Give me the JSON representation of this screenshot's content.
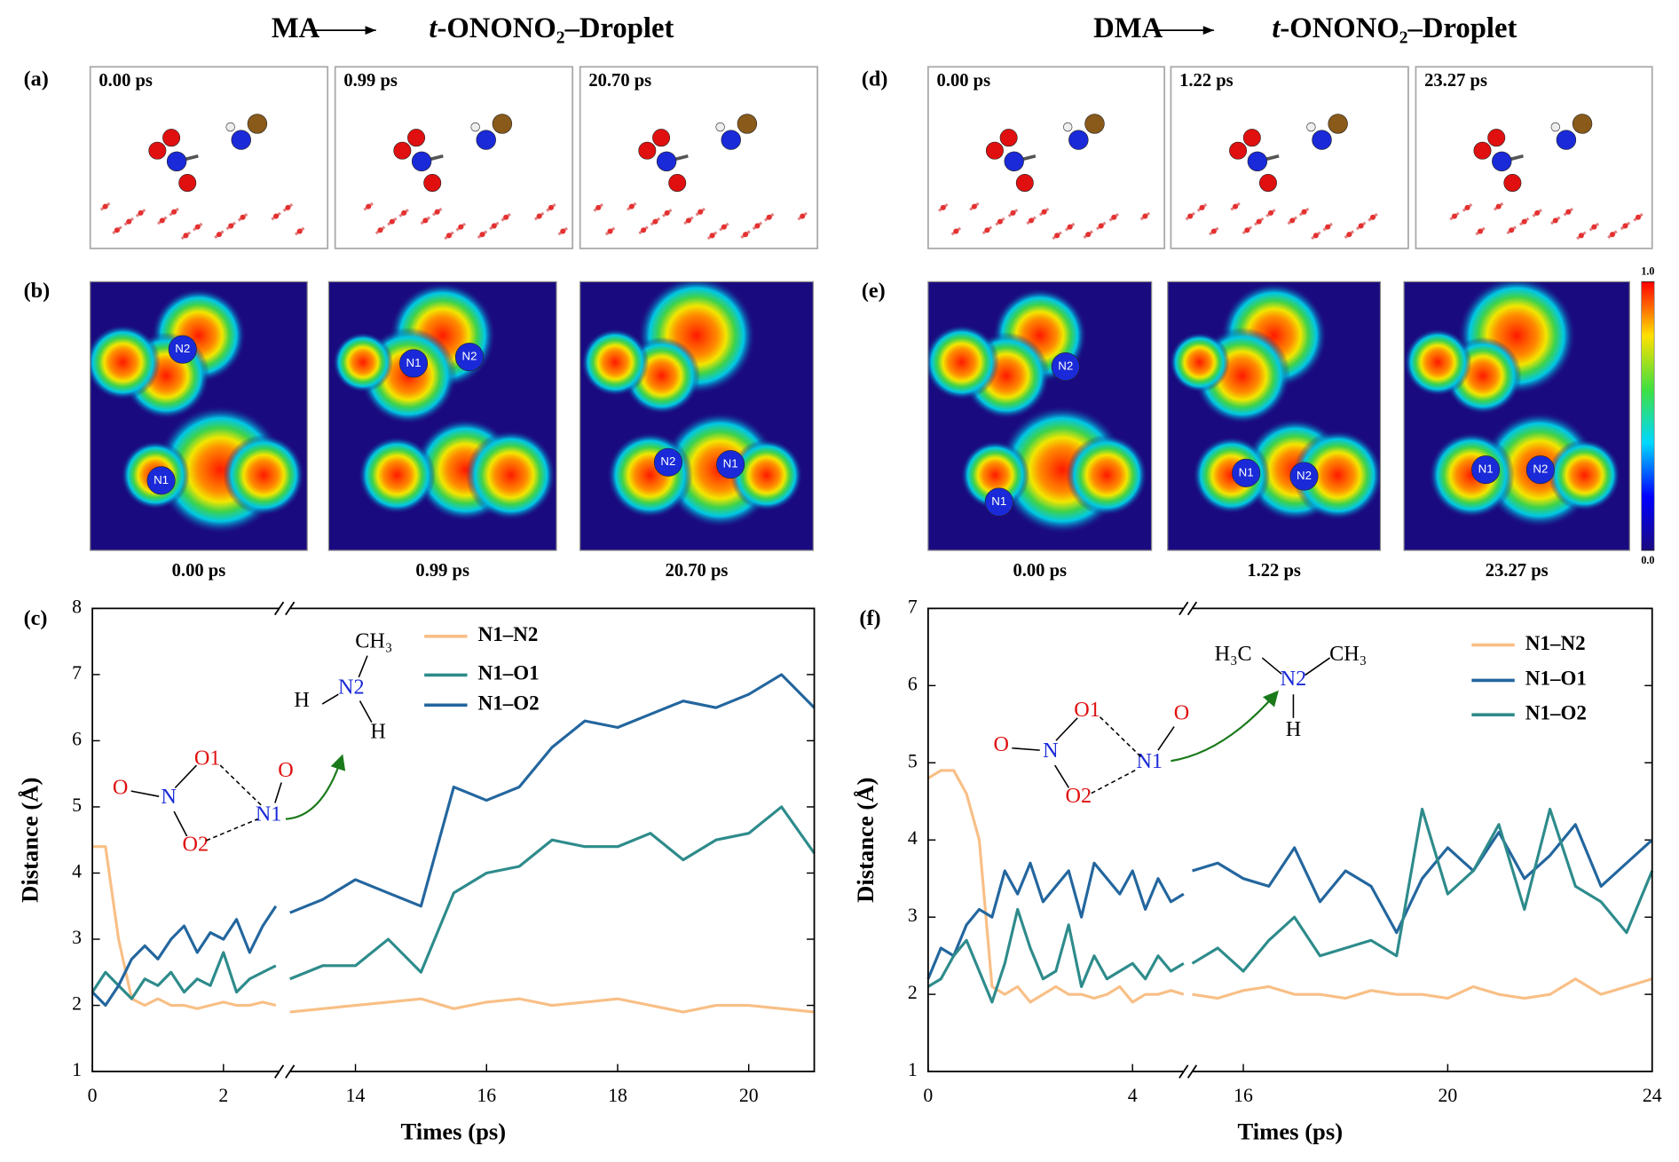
{
  "figure": {
    "titles": [
      {
        "reactant": "MA",
        "product_italic": "t",
        "product": "-ONONO₂–Droplet"
      },
      {
        "reactant": "DMA",
        "product_italic": "t",
        "product": "-ONONO₂–Droplet"
      }
    ],
    "snapshots": [
      {
        "label": "(a)",
        "times": [
          "0.00 ps",
          "0.99 ps",
          "20.70 ps"
        ]
      },
      {
        "label": "(d)",
        "times": [
          "0.00 ps",
          "1.22 ps",
          "23.27 ps"
        ]
      }
    ],
    "elf": [
      {
        "label": "(b)",
        "times": [
          "0.00 ps",
          "0.99 ps",
          "20.70 ps"
        ],
        "atoms": [
          [
            "N2",
            "N1"
          ],
          [
            "N1",
            "N2"
          ],
          [
            "N2",
            "N1"
          ]
        ]
      },
      {
        "label": "(e)",
        "times": [
          "0.00 ps",
          "1.22 ps",
          "23.27 ps"
        ],
        "atoms": [
          [
            "N2",
            "N1"
          ],
          [
            "N1",
            "N2"
          ],
          [
            "N1",
            "N2"
          ]
        ]
      }
    ],
    "colorbar": [
      {
        "value": 1,
        "label": "1.0"
      },
      {
        "value": 0,
        "label": "0.0"
      }
    ],
    "insets": [
      [
        "CH₃",
        "N2",
        "H",
        "H",
        "O1",
        "O",
        "N",
        "O2",
        "N1",
        "O"
      ],
      [
        "H₃C",
        "N2",
        "CH₃",
        "H",
        "O1",
        "O",
        "N",
        "O2",
        "N1",
        "O"
      ]
    ]
  },
  "chart_data": [
    {
      "type": "line",
      "label": "(c)",
      "xlabel": "Times (ps)",
      "ylabel": "Distance (Å)",
      "xlim": [
        0,
        21
      ],
      "xbreak": [
        2.85,
        13
      ],
      "xticks": [
        0,
        2,
        14,
        16,
        18,
        20
      ],
      "ylim": [
        1,
        8
      ],
      "yticks": [
        1,
        2,
        3,
        4,
        5,
        6,
        7,
        8
      ],
      "x": [
        0,
        0.2,
        0.4,
        0.6,
        0.8,
        1.0,
        1.2,
        1.4,
        1.6,
        1.8,
        2.0,
        2.2,
        2.4,
        2.6,
        2.8,
        13,
        13.5,
        14,
        14.5,
        15,
        15.5,
        16,
        16.5,
        17,
        17.5,
        18,
        18.5,
        19,
        19.5,
        20,
        20.5,
        21
      ],
      "series": [
        {
          "name": "N1–N2",
          "color": "#f8bf86",
          "values": [
            4.4,
            4.4,
            3.0,
            2.1,
            2.0,
            2.1,
            2.0,
            2.0,
            1.95,
            2.0,
            2.05,
            2.0,
            2.0,
            2.05,
            2.0,
            1.9,
            1.95,
            2.0,
            2.05,
            2.1,
            1.95,
            2.05,
            2.1,
            2.0,
            2.05,
            2.1,
            2.0,
            1.9,
            2.0,
            2.0,
            1.95,
            1.9
          ]
        },
        {
          "name": "N1–O1",
          "color": "#2e8b8b",
          "values": [
            2.2,
            2.5,
            2.3,
            2.1,
            2.4,
            2.3,
            2.5,
            2.2,
            2.4,
            2.3,
            2.8,
            2.2,
            2.4,
            2.5,
            2.6,
            2.4,
            2.6,
            2.6,
            3.0,
            2.5,
            3.7,
            4.0,
            4.1,
            4.5,
            4.4,
            4.4,
            4.6,
            4.2,
            4.5,
            4.6,
            5.0,
            4.3
          ]
        },
        {
          "name": "N1–O2",
          "color": "#23669e",
          "values": [
            2.2,
            2.0,
            2.3,
            2.7,
            2.9,
            2.7,
            3.0,
            3.2,
            2.8,
            3.1,
            3.0,
            3.3,
            2.8,
            3.2,
            3.5,
            3.4,
            3.6,
            3.9,
            3.7,
            3.5,
            5.3,
            5.1,
            5.3,
            5.9,
            6.3,
            6.2,
            6.4,
            6.6,
            6.5,
            6.7,
            7.0,
            6.5
          ]
        }
      ]
    },
    {
      "type": "line",
      "label": "(f)",
      "xlabel": "Times (ps)",
      "ylabel": "Distance (Å)",
      "xlim": [
        0,
        24
      ],
      "xbreak": [
        5,
        15
      ],
      "xticks": [
        0,
        4,
        16,
        20,
        24
      ],
      "ylim": [
        1,
        7
      ],
      "yticks": [
        1,
        2,
        3,
        4,
        5,
        6,
        7
      ],
      "x": [
        0,
        0.25,
        0.5,
        0.75,
        1.0,
        1.25,
        1.5,
        1.75,
        2.0,
        2.25,
        2.5,
        2.75,
        3.0,
        3.25,
        3.5,
        3.75,
        4.0,
        4.25,
        4.5,
        4.75,
        5.0,
        15,
        15.5,
        16,
        16.5,
        17,
        17.5,
        18,
        18.5,
        19,
        19.5,
        20,
        20.5,
        21,
        21.5,
        22,
        22.5,
        23,
        23.5,
        24
      ],
      "series": [
        {
          "name": "N1–N2",
          "color": "#f8bf86",
          "values": [
            4.8,
            4.9,
            4.9,
            4.6,
            4.0,
            2.1,
            2.0,
            2.1,
            1.9,
            2.0,
            2.1,
            2.0,
            2.0,
            1.95,
            2.0,
            2.1,
            1.9,
            2.0,
            2.0,
            2.05,
            2.0,
            2.0,
            1.95,
            2.05,
            2.1,
            2.0,
            2.0,
            1.95,
            2.05,
            2.0,
            2.0,
            1.95,
            2.1,
            2.0,
            1.95,
            2.0,
            2.2,
            2.0,
            2.1,
            2.2
          ]
        },
        {
          "name": "N1–O1",
          "color": "#23669e",
          "values": [
            2.2,
            2.6,
            2.5,
            2.9,
            3.1,
            3.0,
            3.6,
            3.3,
            3.7,
            3.2,
            3.4,
            3.6,
            3.0,
            3.7,
            3.5,
            3.3,
            3.6,
            3.1,
            3.5,
            3.2,
            3.3,
            3.6,
            3.7,
            3.5,
            3.4,
            3.9,
            3.2,
            3.6,
            3.4,
            2.8,
            3.5,
            3.9,
            3.6,
            4.1,
            3.5,
            3.8,
            4.2,
            3.4,
            3.7,
            4.0
          ]
        },
        {
          "name": "N1–O2",
          "color": "#2e8b8b",
          "values": [
            2.1,
            2.2,
            2.5,
            2.7,
            2.3,
            1.9,
            2.4,
            3.1,
            2.6,
            2.2,
            2.3,
            2.9,
            2.1,
            2.5,
            2.2,
            2.3,
            2.4,
            2.2,
            2.5,
            2.3,
            2.4,
            2.4,
            2.6,
            2.3,
            2.7,
            3.0,
            2.5,
            2.6,
            2.7,
            2.5,
            4.4,
            3.3,
            3.6,
            4.2,
            3.1,
            4.4,
            3.4,
            3.2,
            2.8,
            3.6
          ]
        }
      ]
    }
  ]
}
